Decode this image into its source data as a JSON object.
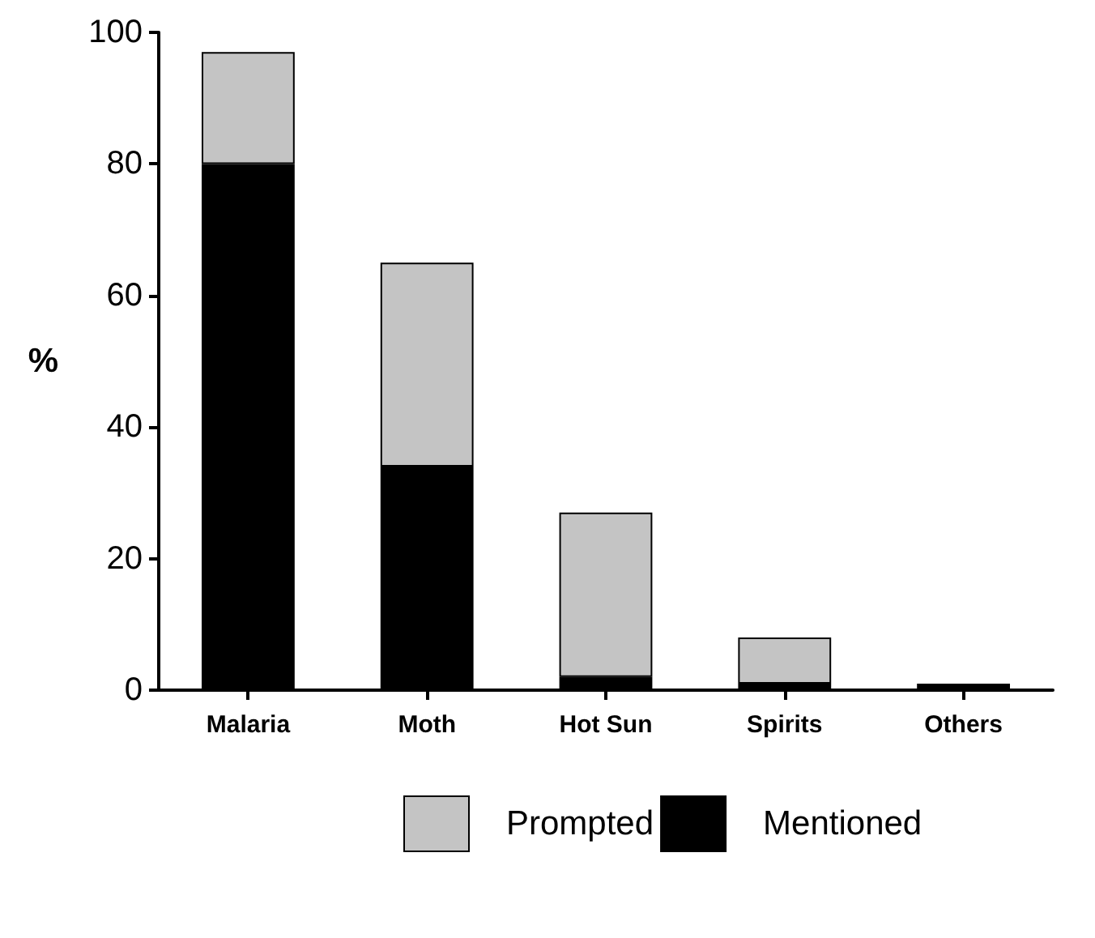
{
  "chart_data": {
    "type": "bar",
    "ylabel": "%",
    "categories": [
      "Malaria",
      "Moth",
      "Hot Sun",
      "Spirits",
      "Others"
    ],
    "stacked": true,
    "ylim": [
      0,
      100
    ],
    "yticks": [
      0,
      20,
      40,
      60,
      80,
      100
    ],
    "grid": false,
    "legend": "bottom",
    "series": [
      {
        "name": "Mentioned",
        "color": "#000000",
        "values": [
          80,
          34,
          2,
          1,
          1
        ]
      },
      {
        "name": "Prompted",
        "color": "#c4c4c4",
        "values": [
          17,
          31,
          25,
          7,
          0
        ]
      }
    ]
  }
}
